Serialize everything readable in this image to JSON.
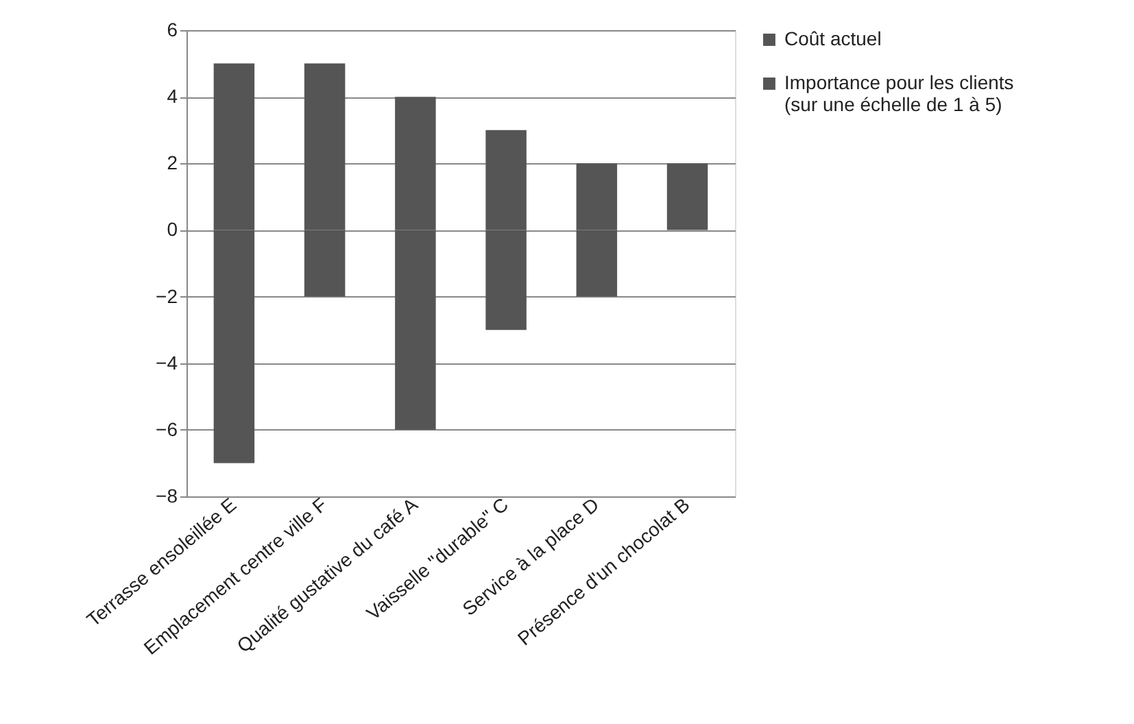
{
  "chart_data": {
    "type": "bar",
    "stacked": true,
    "categories": [
      "Terrasse ensoleillée E",
      "Emplacement centre ville F",
      "Qualité gustative du café A",
      "Vaisselle \"durable\" C",
      "Service à la place D",
      "Présence d'un chocolat B"
    ],
    "series": [
      {
        "name": "Coût actuel",
        "color": "#555555",
        "values": [
          -7,
          -2,
          -6,
          -3,
          -2,
          0
        ]
      },
      {
        "name": "Importance pour les clients\n(sur une échelle de 1 à 5)",
        "color": "#555555",
        "values": [
          5,
          5,
          4,
          3,
          2,
          2
        ]
      }
    ],
    "ylim": [
      -8,
      6
    ],
    "yticks": [
      -8,
      -6,
      -4,
      -2,
      0,
      2,
      4,
      6
    ],
    "grid": "y",
    "legend": "right"
  }
}
